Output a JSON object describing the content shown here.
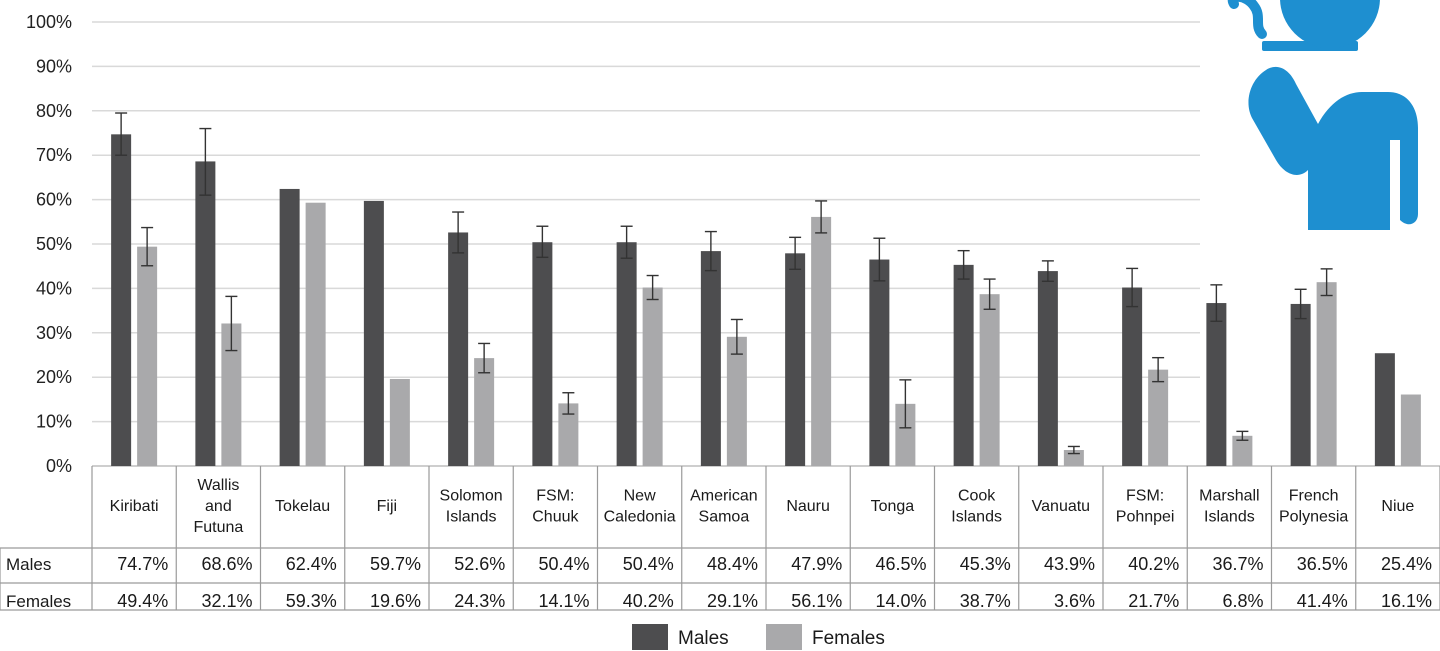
{
  "chart_data": {
    "type": "bar",
    "categories": [
      [
        "Kiribati"
      ],
      [
        "Wallis",
        "and",
        "Futuna"
      ],
      [
        "Tokelau"
      ],
      [
        "Fiji"
      ],
      [
        "Solomon",
        "Islands"
      ],
      [
        "FSM:",
        "Chuuk"
      ],
      [
        "New",
        "Caledonia"
      ],
      [
        "American",
        "Samoa"
      ],
      [
        "Nauru"
      ],
      [
        "Tonga"
      ],
      [
        "Cook",
        "Islands"
      ],
      [
        "Vanuatu"
      ],
      [
        "FSM:",
        "Pohnpei"
      ],
      [
        "Marshall",
        "Islands"
      ],
      [
        "French",
        "Polynesia"
      ],
      [
        "Niue"
      ]
    ],
    "series": [
      {
        "name": "Males",
        "color": "#4d4d4f",
        "values": [
          74.7,
          68.6,
          62.4,
          59.7,
          52.6,
          50.4,
          50.4,
          48.4,
          47.9,
          46.5,
          45.3,
          43.9,
          40.2,
          36.7,
          36.5,
          25.4
        ],
        "error_upper": [
          79.5,
          76.0,
          null,
          null,
          57.2,
          54.0,
          54.0,
          52.8,
          51.5,
          51.3,
          48.5,
          46.2,
          44.5,
          40.8,
          39.8,
          null
        ],
        "error_lower": [
          70.0,
          61.0,
          null,
          null,
          48.0,
          47.0,
          46.8,
          44.0,
          44.3,
          41.7,
          42.1,
          41.6,
          35.9,
          32.6,
          33.2,
          null
        ],
        "table_values": [
          "74.7%",
          "68.6%",
          "62.4%",
          "59.7%",
          "52.6%",
          "50.4%",
          "50.4%",
          "48.4%",
          "47.9%",
          "46.5%",
          "45.3%",
          "43.9%",
          "40.2%",
          "36.7%",
          "36.5%",
          "25.4%"
        ]
      },
      {
        "name": "Females",
        "color": "#a9a9ab",
        "values": [
          49.4,
          32.1,
          59.3,
          19.6,
          24.3,
          14.1,
          40.2,
          29.1,
          56.1,
          14.0,
          38.7,
          3.6,
          21.7,
          6.8,
          41.4,
          16.1
        ],
        "error_upper": [
          53.7,
          38.2,
          null,
          null,
          27.6,
          16.5,
          42.9,
          33.0,
          59.7,
          19.4,
          42.1,
          4.4,
          24.4,
          7.8,
          44.4,
          null
        ],
        "error_lower": [
          45.1,
          26.0,
          null,
          null,
          21.0,
          11.7,
          37.5,
          25.2,
          52.5,
          8.6,
          35.3,
          2.8,
          19.0,
          5.8,
          38.4,
          null
        ],
        "table_values": [
          "49.4%",
          "32.1%",
          "59.3%",
          "19.6%",
          "24.3%",
          "14.1%",
          "40.2%",
          "29.1%",
          "56.1%",
          "14.0%",
          "38.7%",
          "3.6%",
          "21.7%",
          "6.8%",
          "41.4%",
          "16.1%"
        ]
      }
    ],
    "ylim": [
      0,
      100
    ],
    "yticks": [
      "0%",
      "10%",
      "20%",
      "30%",
      "40%",
      "50%",
      "60%",
      "70%",
      "80%",
      "90%",
      "100%"
    ],
    "grid": true,
    "legend": [
      "Males",
      "Females"
    ],
    "legend_position": "bottom-center",
    "icon": "person-smoking-icon",
    "icon_color": "#1e8fd0"
  }
}
